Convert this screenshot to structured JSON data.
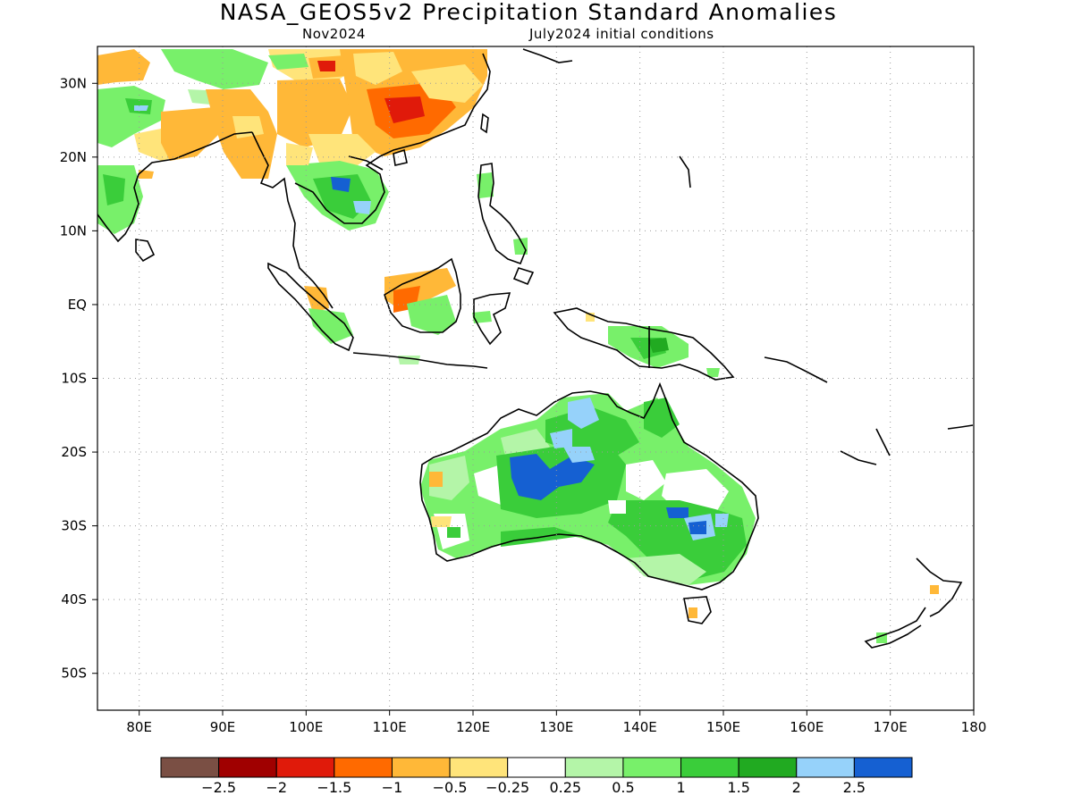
{
  "title": "NASA_GEOS5v2 Precipitation Standard Anomalies",
  "subtitle_left": "Nov2024",
  "subtitle_right": "July2024 initial conditions",
  "map": {
    "lon_range": [
      75,
      180
    ],
    "lat_range": [
      -55,
      35
    ],
    "lon_ticks": [
      {
        "value": 80,
        "label": "80E"
      },
      {
        "value": 90,
        "label": "90E"
      },
      {
        "value": 100,
        "label": "100E"
      },
      {
        "value": 110,
        "label": "110E"
      },
      {
        "value": 120,
        "label": "120E"
      },
      {
        "value": 130,
        "label": "130E"
      },
      {
        "value": 140,
        "label": "140E"
      },
      {
        "value": 150,
        "label": "150E"
      },
      {
        "value": 160,
        "label": "160E"
      },
      {
        "value": 170,
        "label": "170E"
      },
      {
        "value": 180,
        "label": "180"
      }
    ],
    "lat_ticks": [
      {
        "value": 30,
        "label": "30N"
      },
      {
        "value": 20,
        "label": "20N"
      },
      {
        "value": 10,
        "label": "10N"
      },
      {
        "value": 0,
        "label": "EQ"
      },
      {
        "value": -10,
        "label": "10S"
      },
      {
        "value": -20,
        "label": "20S"
      },
      {
        "value": -30,
        "label": "30S"
      },
      {
        "value": -40,
        "label": "40S"
      },
      {
        "value": -50,
        "label": "50S"
      }
    ],
    "grid": "dotted"
  },
  "colorbar": {
    "colors": [
      "#7a4f44",
      "#a00000",
      "#e01a0a",
      "#ff6a00",
      "#ffb838",
      "#ffe47a",
      "#ffffff",
      "#b4f5a8",
      "#78f06a",
      "#3acd3a",
      "#21aa21",
      "#96d2fa",
      "#1560d2"
    ],
    "labels": [
      "−2.5",
      "−2",
      "−1.5",
      "−1",
      "−0.5",
      "−0.25",
      "0.25",
      "0.5",
      "1",
      "1.5",
      "2",
      "2.5"
    ]
  },
  "colors": {
    "light_green": "#b4f5a8",
    "green": "#78f06a",
    "mid_green": "#3acd3a",
    "dark_green": "#21aa21",
    "light_blue": "#96d2fa",
    "blue": "#1560d2",
    "yellow": "#ffe47a",
    "light_orange": "#ffb838",
    "orange": "#ff6a00",
    "red": "#e01a0a"
  }
}
